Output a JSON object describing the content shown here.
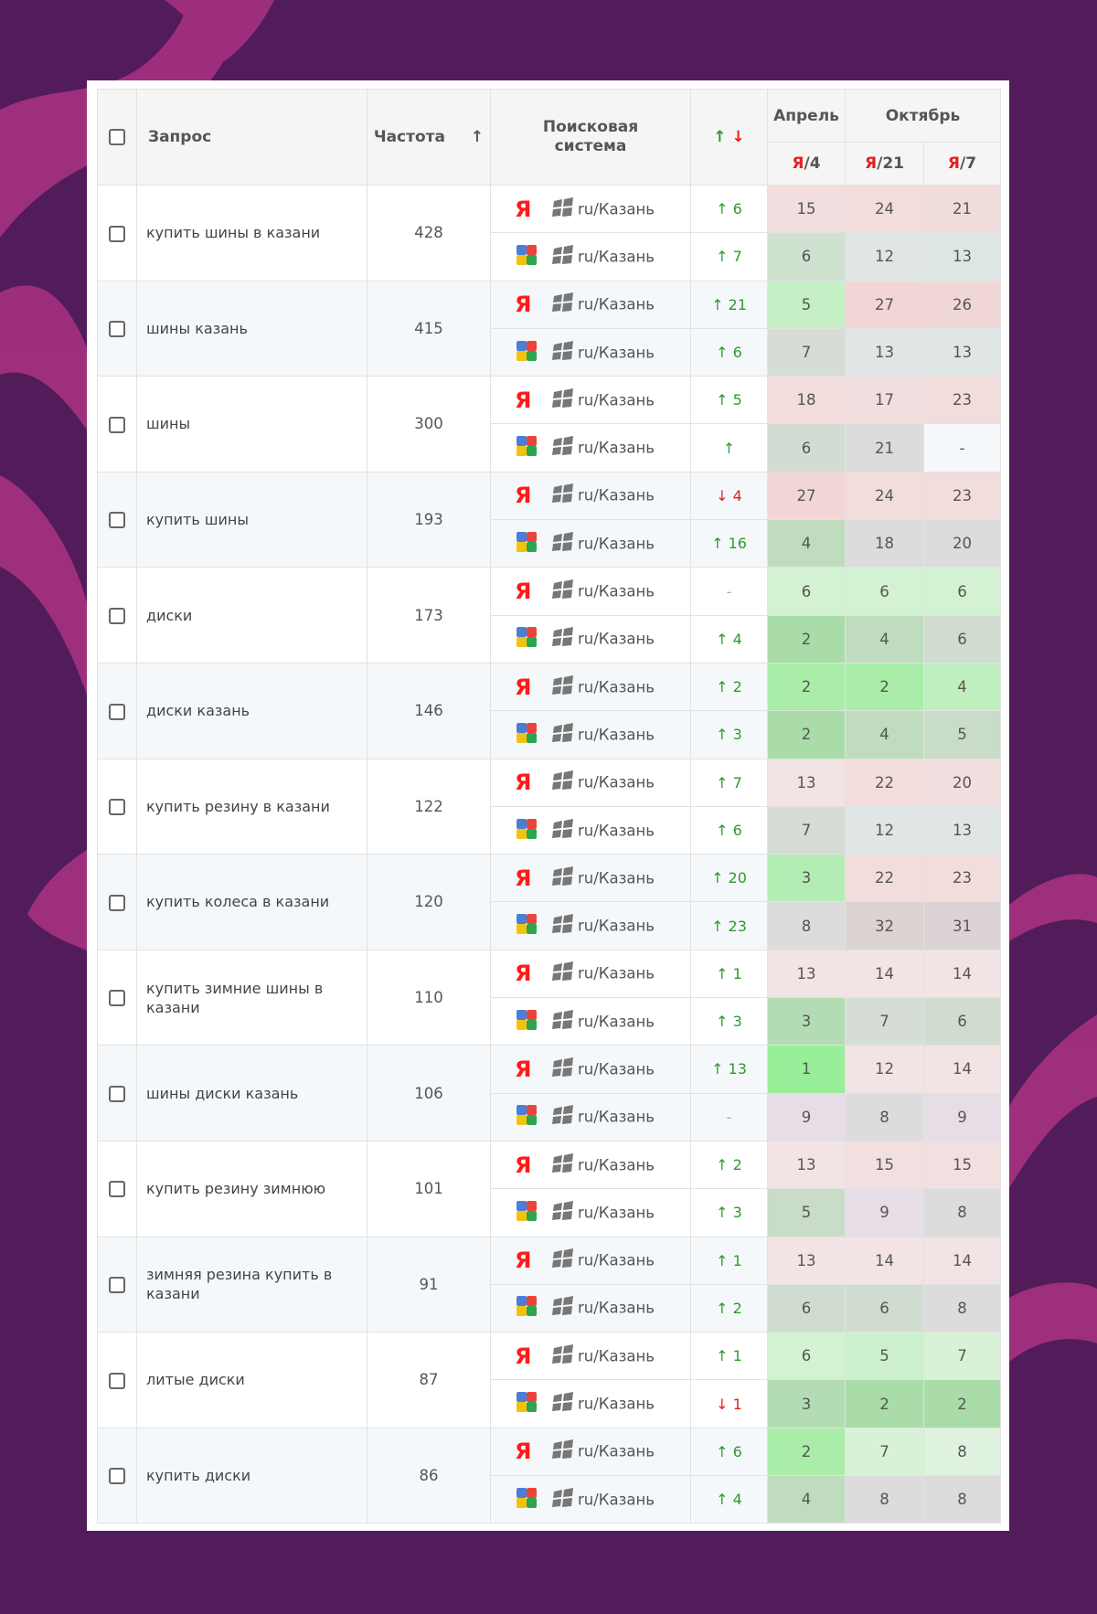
{
  "header": {
    "query": "Запрос",
    "frequency": "Частота",
    "sort_arrow": "↑",
    "search_engine": "Поисковая система",
    "dyn_up": "↑",
    "dyn_down": "↓",
    "month1": "Апрель",
    "month2": "Октябрь",
    "col1_prefix": "Я",
    "col1_suffix": "/4",
    "col2_prefix": "Я",
    "col2_suffix": "/21",
    "col3_prefix": "Я",
    "col3_suffix": "/7"
  },
  "location": "ru/Казань",
  "yandex_logo": "Я",
  "colors": {
    "background": "#521c5a",
    "up": "#2e9a2e",
    "down": "#e42020"
  },
  "rows": [
    {
      "query": "купить шины в казани",
      "freq": "428",
      "engines": [
        {
          "engine": "yandex",
          "dir": "up",
          "dyn": "↑ 6",
          "p": [
            "15",
            "24",
            "21"
          ],
          "c": [
            "#f2dede",
            "#f3dcdc",
            "#f1dcdc"
          ]
        },
        {
          "engine": "google",
          "dir": "up",
          "dyn": "↑ 7",
          "p": [
            "6",
            "12",
            "13"
          ],
          "c": [
            "#cfe1cf",
            "#e0e6e6",
            "#dde5e5"
          ]
        }
      ]
    },
    {
      "query": "шины казань",
      "freq": "415",
      "engines": [
        {
          "engine": "yandex",
          "dir": "up",
          "dyn": "↑ 21",
          "p": [
            "5",
            "27",
            "26"
          ],
          "c": [
            "#c6efc6",
            "#f2d6d6",
            "#f1d6d6"
          ]
        },
        {
          "engine": "google",
          "dir": "up",
          "dyn": "↑ 6",
          "p": [
            "7",
            "13",
            "13"
          ],
          "c": [
            "#d6ddd6",
            "#e0e6e6",
            "#e0e6e6"
          ]
        }
      ]
    },
    {
      "query": "шины",
      "freq": "300",
      "engines": [
        {
          "engine": "yandex",
          "dir": "up",
          "dyn": "↑ 5",
          "p": [
            "18",
            "17",
            "23"
          ],
          "c": [
            "#f2dcdc",
            "#f2dede",
            "#f2dcdc"
          ]
        },
        {
          "engine": "google",
          "dir": "up",
          "dyn": "↑",
          "p": [
            "6",
            "21",
            "-"
          ],
          "c": [
            "#d2dcd2",
            "#dcdcdc",
            "#f5f8fa"
          ]
        }
      ]
    },
    {
      "query": "купить шины",
      "freq": "193",
      "engines": [
        {
          "engine": "yandex",
          "dir": "down",
          "dyn": "↓ 4",
          "p": [
            "27",
            "24",
            "23"
          ],
          "c": [
            "#f2d6d6",
            "#f2dcdc",
            "#f2dcdc"
          ]
        },
        {
          "engine": "google",
          "dir": "up",
          "dyn": "↑ 16",
          "p": [
            "4",
            "18",
            "20"
          ],
          "c": [
            "#bfdcbf",
            "#dcdcdc",
            "#dcdcdc"
          ]
        }
      ]
    },
    {
      "query": "диски",
      "freq": "173",
      "engines": [
        {
          "engine": "yandex",
          "dir": "nil",
          "dyn": "-",
          "p": [
            "6",
            "6",
            "6"
          ],
          "c": [
            "#d2f2d2",
            "#d2f2d2",
            "#d2f2d2"
          ]
        },
        {
          "engine": "google",
          "dir": "up",
          "dyn": "↑ 4",
          "p": [
            "2",
            "4",
            "6"
          ],
          "c": [
            "#a9dca9",
            "#bfdcbf",
            "#d0dcd0"
          ]
        }
      ]
    },
    {
      "query": "диски казань",
      "freq": "146",
      "engines": [
        {
          "engine": "yandex",
          "dir": "up",
          "dyn": "↑ 2",
          "p": [
            "2",
            "2",
            "4"
          ],
          "c": [
            "#a9eda9",
            "#a9eda9",
            "#bfefbf"
          ]
        },
        {
          "engine": "google",
          "dir": "up",
          "dyn": "↑ 3",
          "p": [
            "2",
            "4",
            "5"
          ],
          "c": [
            "#a9dca9",
            "#bfdcbf",
            "#c8dcc8"
          ]
        }
      ]
    },
    {
      "query": "купить резину в казани",
      "freq": "122",
      "engines": [
        {
          "engine": "yandex",
          "dir": "up",
          "dyn": "↑ 7",
          "p": [
            "13",
            "22",
            "20"
          ],
          "c": [
            "#f2e4e4",
            "#f2dcdc",
            "#f2dede"
          ]
        },
        {
          "engine": "google",
          "dir": "up",
          "dyn": "↑ 6",
          "p": [
            "7",
            "12",
            "13"
          ],
          "c": [
            "#d6ddd6",
            "#e0e6e6",
            "#e0e6e6"
          ]
        }
      ]
    },
    {
      "query": "купить колеса в казани",
      "freq": "120",
      "engines": [
        {
          "engine": "yandex",
          "dir": "up",
          "dyn": "↑ 20",
          "p": [
            "3",
            "22",
            "23"
          ],
          "c": [
            "#b4edb4",
            "#f2dcdc",
            "#f2dcdc"
          ]
        },
        {
          "engine": "google",
          "dir": "up",
          "dyn": "↑ 23",
          "p": [
            "8",
            "32",
            "31"
          ],
          "c": [
            "#dcdcdc",
            "#dcd3d3",
            "#dcd4d4"
          ]
        }
      ]
    },
    {
      "query": "купить зимние шины в казани",
      "freq": "110",
      "engines": [
        {
          "engine": "yandex",
          "dir": "up",
          "dyn": "↑ 1",
          "p": [
            "13",
            "14",
            "14"
          ],
          "c": [
            "#f2e4e4",
            "#f2e4e4",
            "#f2e4e4"
          ]
        },
        {
          "engine": "google",
          "dir": "up",
          "dyn": "↑ 3",
          "p": [
            "3",
            "7",
            "6"
          ],
          "c": [
            "#b4dcb4",
            "#d6ddd6",
            "#d0dcd0"
          ]
        }
      ]
    },
    {
      "query": "шины диски казань",
      "freq": "106",
      "engines": [
        {
          "engine": "yandex",
          "dir": "up",
          "dyn": "↑ 13",
          "p": [
            "1",
            "12",
            "14"
          ],
          "c": [
            "#99ee99",
            "#f2e4e4",
            "#f2e4e4"
          ]
        },
        {
          "engine": "google",
          "dir": "nil",
          "dyn": "-",
          "p": [
            "9",
            "8",
            "9"
          ],
          "c": [
            "#e6dde6",
            "#dcdcdc",
            "#e6dde6"
          ]
        }
      ]
    },
    {
      "query": "купить резину зимнюю",
      "freq": "101",
      "engines": [
        {
          "engine": "yandex",
          "dir": "up",
          "dyn": "↑ 2",
          "p": [
            "13",
            "15",
            "15"
          ],
          "c": [
            "#f2e4e4",
            "#f2e0e0",
            "#f2e0e0"
          ]
        },
        {
          "engine": "google",
          "dir": "up",
          "dyn": "↑ 3",
          "p": [
            "5",
            "9",
            "8"
          ],
          "c": [
            "#c8dcc8",
            "#e6dde6",
            "#dcdcdc"
          ]
        }
      ]
    },
    {
      "query": "зимняя резина купить в казани",
      "freq": "91",
      "engines": [
        {
          "engine": "yandex",
          "dir": "up",
          "dyn": "↑ 1",
          "p": [
            "13",
            "14",
            "14"
          ],
          "c": [
            "#f2e4e4",
            "#f2e4e4",
            "#f2e4e4"
          ]
        },
        {
          "engine": "google",
          "dir": "up",
          "dyn": "↑ 2",
          "p": [
            "6",
            "6",
            "8"
          ],
          "c": [
            "#d0dcd0",
            "#d0dcd0",
            "#dcdcdc"
          ]
        }
      ]
    },
    {
      "query": "литые диски",
      "freq": "87",
      "engines": [
        {
          "engine": "yandex",
          "dir": "up",
          "dyn": "↑ 1",
          "p": [
            "6",
            "5",
            "7"
          ],
          "c": [
            "#d2f2d2",
            "#ccf0cc",
            "#d8f2d8"
          ]
        },
        {
          "engine": "google",
          "dir": "down",
          "dyn": "↓ 1",
          "p": [
            "3",
            "2",
            "2"
          ],
          "c": [
            "#b4dcb4",
            "#a9dca9",
            "#a9dca9"
          ]
        }
      ]
    },
    {
      "query": "купить диски",
      "freq": "86",
      "engines": [
        {
          "engine": "yandex",
          "dir": "up",
          "dyn": "↑ 6",
          "p": [
            "2",
            "7",
            "8"
          ],
          "c": [
            "#a9eda9",
            "#d8f2d8",
            "#e0f2e0"
          ]
        },
        {
          "engine": "google",
          "dir": "up",
          "dyn": "↑ 4",
          "p": [
            "4",
            "8",
            "8"
          ],
          "c": [
            "#bfdcbf",
            "#dcdcdc",
            "#dcdcdc"
          ]
        }
      ]
    }
  ]
}
